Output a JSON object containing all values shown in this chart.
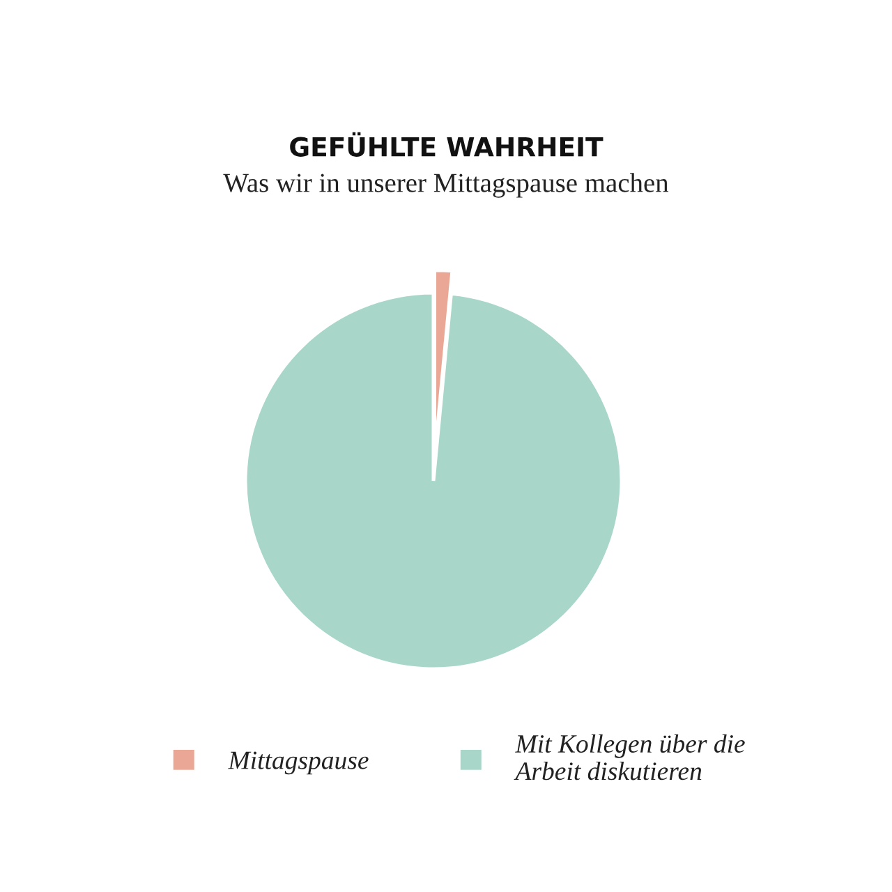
{
  "chart_data": {
    "type": "pie",
    "title": "GEFÜHLTE WAHRHEIT",
    "subtitle": "Was wir in unserer Mittagspause machen",
    "categories": [
      "Mittagspause",
      "Mit Kollegen über die\nArbeit diskutieren"
    ],
    "values": [
      1.5,
      98.5
    ],
    "colors": [
      "#eaa795",
      "#a8d7c9"
    ],
    "legend": "bottom"
  }
}
